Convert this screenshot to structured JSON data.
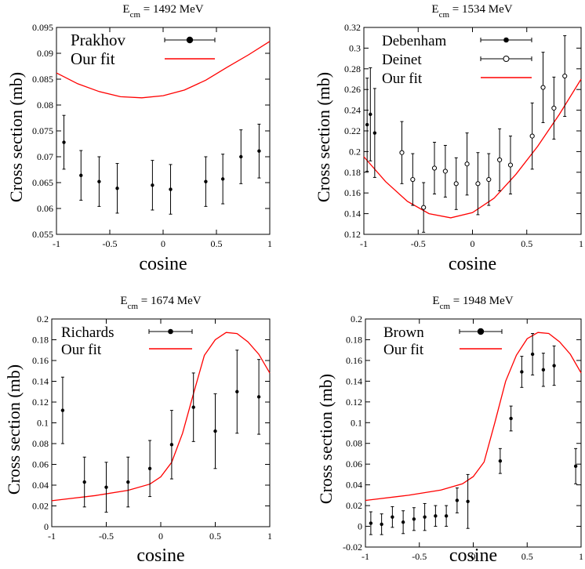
{
  "chart_data": [
    {
      "type": "scatter",
      "title_main": "E",
      "title_sub": "cm",
      "title_rest": " = 1492 MeV",
      "xlabel": "cosine",
      "ylabel": "Cross section (mb)",
      "xlim": [
        -1,
        1
      ],
      "ylim": [
        0.055,
        0.095
      ],
      "xticks": [
        -1,
        -0.5,
        0,
        0.5,
        1
      ],
      "xtick_labels": [
        "-1",
        "-0.5",
        "0",
        "0.5",
        "1"
      ],
      "yticks": [
        0.055,
        0.06,
        0.065,
        0.07,
        0.075,
        0.08,
        0.085,
        0.09,
        0.095
      ],
      "ytick_labels": [
        "0.055",
        "0.06",
        "0.065",
        "0.07",
        "0.075",
        "0.08",
        "0.085",
        "0.09",
        "0.095"
      ],
      "legend": [
        {
          "label": "Prakhov",
          "kind": "data",
          "marker": "filled",
          "big": true
        },
        {
          "label": "Our fit",
          "kind": "fit"
        }
      ],
      "series": [
        {
          "name": "Prakhov",
          "marker": "filled",
          "points": [
            {
              "x": -0.93,
              "y": 0.0728,
              "err": 0.0052
            },
            {
              "x": -0.77,
              "y": 0.0664,
              "err": 0.0048
            },
            {
              "x": -0.6,
              "y": 0.0652,
              "err": 0.0048
            },
            {
              "x": -0.43,
              "y": 0.0639,
              "err": 0.0048
            },
            {
              "x": -0.1,
              "y": 0.0645,
              "err": 0.0048
            },
            {
              "x": 0.07,
              "y": 0.0637,
              "err": 0.0048
            },
            {
              "x": 0.4,
              "y": 0.0652,
              "err": 0.0048
            },
            {
              "x": 0.56,
              "y": 0.0657,
              "err": 0.0048
            },
            {
              "x": 0.73,
              "y": 0.07,
              "err": 0.0052
            },
            {
              "x": 0.9,
              "y": 0.0711,
              "err": 0.0052
            }
          ]
        }
      ],
      "fit": {
        "name": "Our fit",
        "color": "#ff0000",
        "x": [
          -1,
          -0.8,
          -0.6,
          -0.4,
          -0.2,
          0,
          0.2,
          0.4,
          0.6,
          0.8,
          1
        ],
        "y": [
          0.0862,
          0.0841,
          0.0826,
          0.0816,
          0.0814,
          0.0818,
          0.0829,
          0.0848,
          0.0873,
          0.0897,
          0.0923
        ]
      }
    },
    {
      "type": "scatter",
      "title_main": "E",
      "title_sub": "cm",
      "title_rest": " = 1534 MeV",
      "xlabel": "cosine",
      "ylabel": "Cross section (mb)",
      "xlim": [
        -1,
        1
      ],
      "ylim": [
        0.12,
        0.32
      ],
      "xticks": [
        -1,
        -0.5,
        0,
        0.5,
        1
      ],
      "xtick_labels": [
        "-1",
        "-0.5",
        "0",
        "0.5",
        "1"
      ],
      "yticks": [
        0.12,
        0.14,
        0.16,
        0.18,
        0.2,
        0.22,
        0.24,
        0.26,
        0.28,
        0.3,
        0.32
      ],
      "ytick_labels": [
        "0.12",
        "0.14",
        "0.16",
        "0.18",
        "0.2",
        "0.22",
        "0.24",
        "0.26",
        "0.28",
        "0.3",
        "0.32"
      ],
      "legend": [
        {
          "label": "Debenham",
          "kind": "data",
          "marker": "filled"
        },
        {
          "label": "Deinet",
          "kind": "data",
          "marker": "open"
        },
        {
          "label": "Our fit",
          "kind": "fit"
        }
      ],
      "series": [
        {
          "name": "Debenham",
          "marker": "filled",
          "points": [
            {
              "x": -0.97,
              "y": 0.226,
              "err": 0.045
            },
            {
              "x": -0.94,
              "y": 0.236,
              "err": 0.045
            },
            {
              "x": -0.9,
              "y": 0.218,
              "err": 0.043
            }
          ]
        },
        {
          "name": "Deinet",
          "marker": "open",
          "points": [
            {
              "x": -0.65,
              "y": 0.199,
              "err": 0.03
            },
            {
              "x": -0.55,
              "y": 0.173,
              "err": 0.025
            },
            {
              "x": -0.45,
              "y": 0.146,
              "err": 0.024
            },
            {
              "x": -0.35,
              "y": 0.184,
              "err": 0.025
            },
            {
              "x": -0.25,
              "y": 0.181,
              "err": 0.025
            },
            {
              "x": -0.15,
              "y": 0.169,
              "err": 0.025
            },
            {
              "x": -0.05,
              "y": 0.188,
              "err": 0.03
            },
            {
              "x": 0.05,
              "y": 0.169,
              "err": 0.03
            },
            {
              "x": 0.15,
              "y": 0.173,
              "err": 0.025
            },
            {
              "x": 0.25,
              "y": 0.192,
              "err": 0.03
            },
            {
              "x": 0.35,
              "y": 0.187,
              "err": 0.028
            },
            {
              "x": 0.55,
              "y": 0.215,
              "err": 0.032
            },
            {
              "x": 0.65,
              "y": 0.262,
              "err": 0.034
            },
            {
              "x": 0.75,
              "y": 0.242,
              "err": 0.03
            },
            {
              "x": 0.85,
              "y": 0.273,
              "err": 0.039
            }
          ]
        }
      ],
      "fit": {
        "name": "Our fit",
        "color": "#ff0000",
        "x": [
          -1,
          -0.8,
          -0.6,
          -0.4,
          -0.2,
          0,
          0.2,
          0.4,
          0.6,
          0.8,
          1
        ],
        "y": [
          0.195,
          0.171,
          0.152,
          0.14,
          0.136,
          0.141,
          0.155,
          0.178,
          0.205,
          0.236,
          0.27
        ]
      }
    },
    {
      "type": "scatter",
      "title_main": "E",
      "title_sub": "cm",
      "title_rest": " = 1674 MeV",
      "xlabel": "cosine",
      "ylabel": "Cross section (mb)",
      "xlim": [
        -1,
        1
      ],
      "ylim": [
        0,
        0.2
      ],
      "xticks": [
        -1,
        -0.5,
        0,
        0.5,
        1
      ],
      "xtick_labels": [
        "-1",
        "-0.5",
        "0",
        "0.5",
        "1"
      ],
      "yticks": [
        0,
        0.02,
        0.04,
        0.06,
        0.08,
        0.1,
        0.12,
        0.14,
        0.16,
        0.18,
        0.2
      ],
      "ytick_labels": [
        "0",
        "0.02",
        "0.04",
        "0.06",
        "0.08",
        "0.1",
        "0.12",
        "0.14",
        "0.16",
        "0.18",
        "0.2"
      ],
      "legend": [
        {
          "label": "Richards",
          "kind": "data",
          "marker": "filled"
        },
        {
          "label": "Our fit",
          "kind": "fit"
        }
      ],
      "series": [
        {
          "name": "Richards",
          "marker": "filled",
          "points": [
            {
              "x": -0.9,
              "y": 0.112,
              "err": 0.032
            },
            {
              "x": -0.7,
              "y": 0.043,
              "err": 0.024
            },
            {
              "x": -0.5,
              "y": 0.038,
              "err": 0.024
            },
            {
              "x": -0.3,
              "y": 0.043,
              "err": 0.024
            },
            {
              "x": -0.1,
              "y": 0.056,
              "err": 0.027
            },
            {
              "x": 0.1,
              "y": 0.079,
              "err": 0.033
            },
            {
              "x": 0.3,
              "y": 0.115,
              "err": 0.033
            },
            {
              "x": 0.5,
              "y": 0.092,
              "err": 0.036
            },
            {
              "x": 0.7,
              "y": 0.13,
              "err": 0.04
            },
            {
              "x": 0.9,
              "y": 0.125,
              "err": 0.036
            }
          ]
        }
      ],
      "fit": {
        "name": "Our fit",
        "color": "#ff0000",
        "x": [
          -1,
          -0.6,
          -0.3,
          -0.1,
          0,
          0.1,
          0.2,
          0.3,
          0.4,
          0.5,
          0.6,
          0.7,
          0.8,
          0.9,
          1
        ],
        "y": [
          0.025,
          0.03,
          0.035,
          0.041,
          0.048,
          0.062,
          0.09,
          0.128,
          0.165,
          0.18,
          0.187,
          0.186,
          0.178,
          0.166,
          0.148
        ]
      }
    },
    {
      "type": "scatter",
      "title_main": "E",
      "title_sub": "cm",
      "title_rest": " = 1948 MeV",
      "xlabel": "cosine",
      "ylabel": "Cross section (mb)",
      "xlim": [
        -1,
        1
      ],
      "ylim": [
        -0.02,
        0.2
      ],
      "xticks": [
        -1,
        -0.5,
        0,
        0.5,
        1
      ],
      "xtick_labels": [
        "-1",
        "-0.5",
        "0",
        "0.5",
        "1"
      ],
      "yticks": [
        -0.02,
        0,
        0.02,
        0.04,
        0.06,
        0.08,
        0.1,
        0.12,
        0.14,
        0.16,
        0.18,
        0.2
      ],
      "ytick_labels": [
        "-0.02",
        "0",
        "0.02",
        "0.04",
        "0.06",
        "0.08",
        "0.1",
        "0.12",
        "0.14",
        "0.16",
        "0.18",
        "0.2"
      ],
      "legend": [
        {
          "label": "Brown",
          "kind": "data",
          "marker": "filled",
          "big": true
        },
        {
          "label": "Our fit",
          "kind": "fit"
        }
      ],
      "series": [
        {
          "name": "Brown",
          "marker": "filled",
          "points": [
            {
              "x": -0.95,
              "y": 0.003,
              "err": 0.011
            },
            {
              "x": -0.85,
              "y": 0.002,
              "err": 0.01
            },
            {
              "x": -0.75,
              "y": 0.009,
              "err": 0.01
            },
            {
              "x": -0.65,
              "y": 0.004,
              "err": 0.011
            },
            {
              "x": -0.55,
              "y": 0.007,
              "err": 0.011
            },
            {
              "x": -0.45,
              "y": 0.009,
              "err": 0.013
            },
            {
              "x": -0.35,
              "y": 0.01,
              "err": 0.01
            },
            {
              "x": -0.25,
              "y": 0.01,
              "err": 0.01
            },
            {
              "x": -0.15,
              "y": 0.025,
              "err": 0.012
            },
            {
              "x": -0.05,
              "y": 0.024,
              "err": 0.026
            },
            {
              "x": 0.25,
              "y": 0.063,
              "err": 0.012
            },
            {
              "x": 0.35,
              "y": 0.104,
              "err": 0.012
            },
            {
              "x": 0.45,
              "y": 0.149,
              "err": 0.015
            },
            {
              "x": 0.55,
              "y": 0.166,
              "err": 0.02
            },
            {
              "x": 0.65,
              "y": 0.151,
              "err": 0.016
            },
            {
              "x": 0.75,
              "y": 0.155,
              "err": 0.019
            },
            {
              "x": 0.95,
              "y": 0.058,
              "err": 0.017
            }
          ]
        }
      ],
      "fit": {
        "name": "Our fit",
        "color": "#ff0000",
        "x": [
          -1,
          -0.6,
          -0.3,
          -0.1,
          0,
          0.1,
          0.2,
          0.3,
          0.4,
          0.5,
          0.6,
          0.7,
          0.8,
          0.9,
          1
        ],
        "y": [
          0.025,
          0.03,
          0.035,
          0.041,
          0.048,
          0.062,
          0.1,
          0.14,
          0.165,
          0.181,
          0.187,
          0.186,
          0.178,
          0.166,
          0.148
        ]
      }
    }
  ]
}
